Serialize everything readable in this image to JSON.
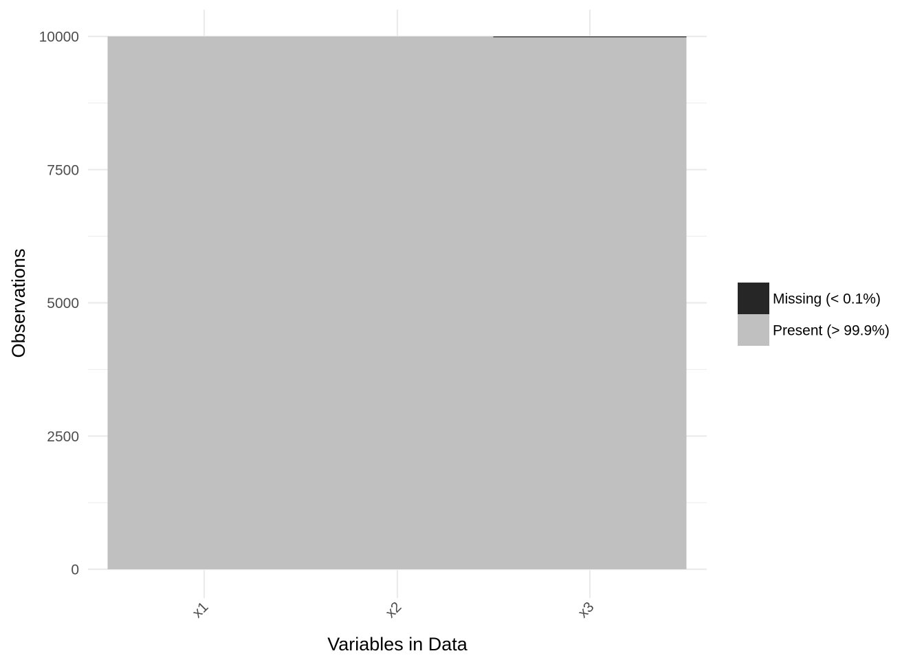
{
  "chart_data": {
    "type": "bar",
    "stacked": true,
    "categories": [
      "x1",
      "x2",
      "x3"
    ],
    "series": [
      {
        "name": "Present",
        "legend_label": "Present (> 99.9%)",
        "values": [
          10000,
          10000,
          9998
        ],
        "color": "#c0c0c0"
      },
      {
        "name": "Missing",
        "legend_label": "Missing (< 0.1%)",
        "values": [
          0,
          0,
          2
        ],
        "color": "#262626"
      }
    ],
    "legend_order": [
      "Missing",
      "Present"
    ],
    "xlabel": "Variables in Data",
    "ylabel": "Observations",
    "ylim": [
      0,
      10000
    ],
    "yticks": [
      0,
      2500,
      5000,
      7500,
      10000
    ],
    "yticks_minor": [
      1250,
      3750,
      6250,
      8750
    ],
    "ytick_labels": [
      "0",
      "2500",
      "5000",
      "7500",
      "10000"
    ],
    "grid": true,
    "legend_position": "right",
    "x_tick_rotation_deg": 45
  }
}
